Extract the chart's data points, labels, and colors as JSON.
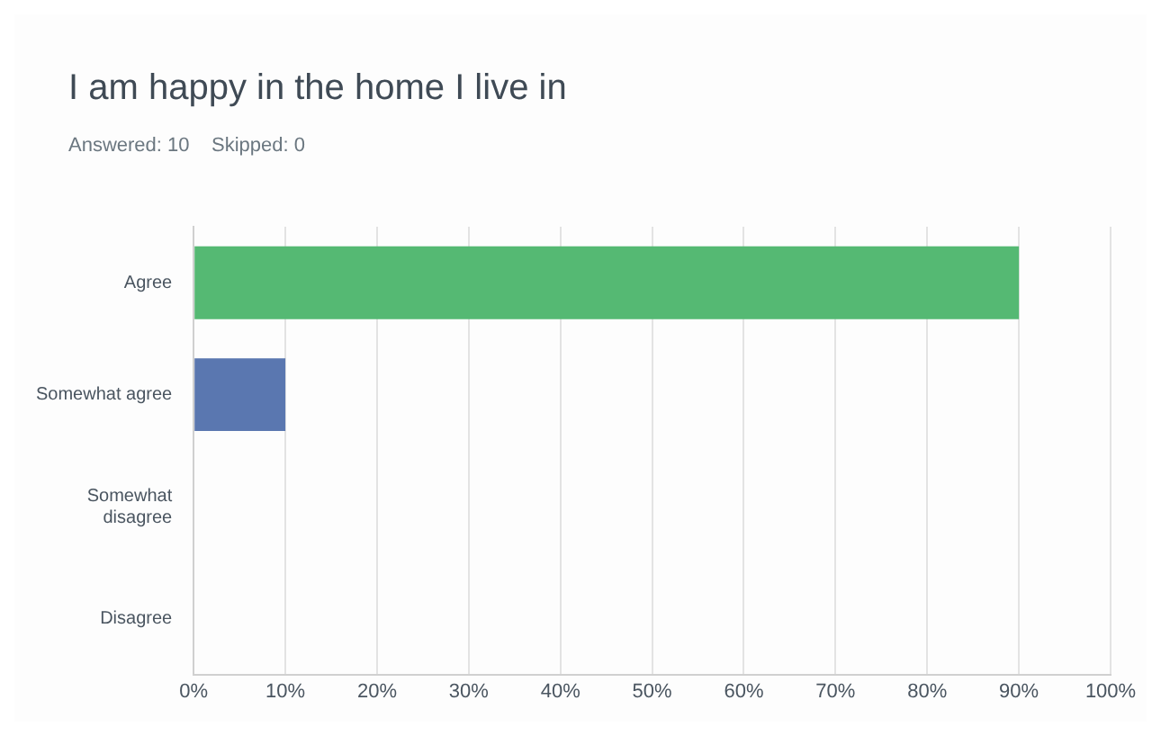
{
  "chart_data": {
    "type": "bar",
    "orientation": "horizontal",
    "title": "I am happy in the home I live in",
    "subtitle": "Answered: 10    Skipped: 0",
    "categories": [
      "Agree",
      "Somewhat agree",
      "Somewhat disagree",
      "Disagree"
    ],
    "values": [
      90,
      10,
      0,
      0
    ],
    "colors": [
      "#55b973",
      "#5a77b0",
      "#5a77b0",
      "#5a77b0"
    ],
    "xlim": [
      0,
      100
    ],
    "xticks": [
      {
        "value": 0,
        "label": "0%"
      },
      {
        "value": 10,
        "label": "10%"
      },
      {
        "value": 20,
        "label": "20%"
      },
      {
        "value": 30,
        "label": "30%"
      },
      {
        "value": 40,
        "label": "40%"
      },
      {
        "value": 50,
        "label": "50%"
      },
      {
        "value": 60,
        "label": "60%"
      },
      {
        "value": 70,
        "label": "70%"
      },
      {
        "value": 80,
        "label": "80%"
      },
      {
        "value": 90,
        "label": "90%"
      },
      {
        "value": 100,
        "label": "100%"
      }
    ],
    "grid": "x"
  }
}
